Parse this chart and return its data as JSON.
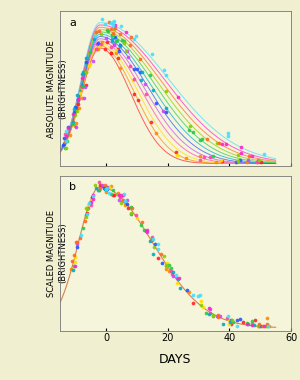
{
  "background_color": "#f0f0d0",
  "panel_bg": "#f5f5dc",
  "title_a": "a",
  "title_b": "b",
  "xlabel": "DAYS",
  "ylabel_a": "ABSOLUTE MAGNITUDE\n(BRIGHTNESS)",
  "ylabel_b": "SCALED MAGNITUDE\n(BRIGHTNESS)",
  "x_min": -15,
  "x_max": 57,
  "x_ticks": [
    0,
    20,
    40,
    60
  ],
  "figsize": [
    3.0,
    3.8
  ],
  "dpi": 100,
  "colors": [
    "#ff2222",
    "#ff8800",
    "#ffdd00",
    "#ff44aa",
    "#cc44ff",
    "#2255ff",
    "#00aacc",
    "#22cc44",
    "#88cc00",
    "#ff6622",
    "#ff22cc",
    "#44ddff",
    "#aaff22",
    "#ffaa44",
    "#6644ff"
  ]
}
